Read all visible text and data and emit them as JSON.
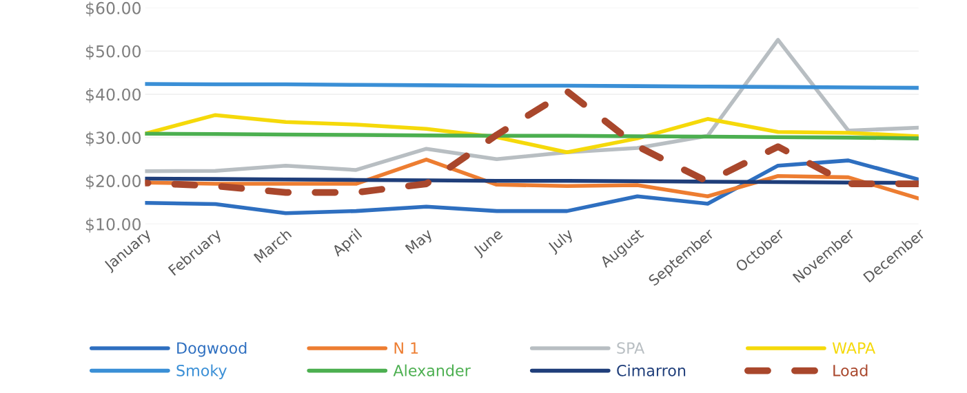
{
  "chart_data": {
    "type": "line",
    "categories": [
      "January",
      "February",
      "March",
      "April",
      "May",
      "June",
      "July",
      "August",
      "September",
      "October",
      "November",
      "December"
    ],
    "series": [
      {
        "name": "Dogwood",
        "color": "#2e6fc0",
        "values": [
          14.9,
          14.6,
          12.5,
          13,
          14,
          13,
          13,
          16.4,
          14.7,
          23.5,
          24.7,
          20.3
        ]
      },
      {
        "name": "N 1",
        "color": "#ed7d31",
        "values": [
          19.6,
          19.3,
          19.3,
          19.3,
          24.9,
          19.1,
          18.8,
          19,
          16.4,
          21.1,
          20.8,
          15.9
        ]
      },
      {
        "name": "SPA",
        "color": "#b8bec2",
        "values": [
          22.2,
          22.3,
          23.5,
          22.5,
          27.4,
          25,
          26.6,
          27.6,
          30.4,
          52.6,
          31.6,
          32.3
        ]
      },
      {
        "name": "WAPA",
        "color": "#f5d90a",
        "values": [
          30.9,
          35.2,
          33.6,
          33,
          32,
          30.1,
          26.6,
          29.8,
          34.3,
          31.3,
          31.1,
          30.3
        ]
      },
      {
        "name": "Smoky",
        "color": "#3a8fd6",
        "values": [
          42.4,
          42.3,
          42.3,
          42.2,
          42.1,
          42,
          42,
          41.9,
          41.8,
          41.7,
          41.6,
          41.5
        ]
      },
      {
        "name": "Alexander",
        "color": "#4caf50",
        "values": [
          30.9,
          30.8,
          30.7,
          30.6,
          30.5,
          30.4,
          30.4,
          30.3,
          30.2,
          30.1,
          30,
          29.8
        ]
      },
      {
        "name": "Cimarron",
        "color": "#1f3e7a",
        "values": [
          20.5,
          20.4,
          20.3,
          20.2,
          20.1,
          20,
          20,
          19.9,
          19.8,
          19.7,
          19.6,
          19.5
        ]
      },
      {
        "name": "Load",
        "color": "#a9472c",
        "line_style": "dashed",
        "values": [
          19.5,
          18.8,
          17.3,
          17.3,
          19.3,
          30.6,
          40.7,
          28,
          19.8,
          27.9,
          19.3,
          19.3
        ]
      }
    ],
    "ylim": [
      10,
      60
    ],
    "yticks": [
      {
        "value": 10,
        "label": "$10.00"
      },
      {
        "value": 20,
        "label": "$20.00"
      },
      {
        "value": 30,
        "label": "$30.00"
      },
      {
        "value": 40,
        "label": "$40.00"
      },
      {
        "value": 50,
        "label": "$50.00"
      },
      {
        "value": 60,
        "label": "$60.00"
      }
    ],
    "grid": "y",
    "legend": "bottom",
    "marker": "none"
  }
}
